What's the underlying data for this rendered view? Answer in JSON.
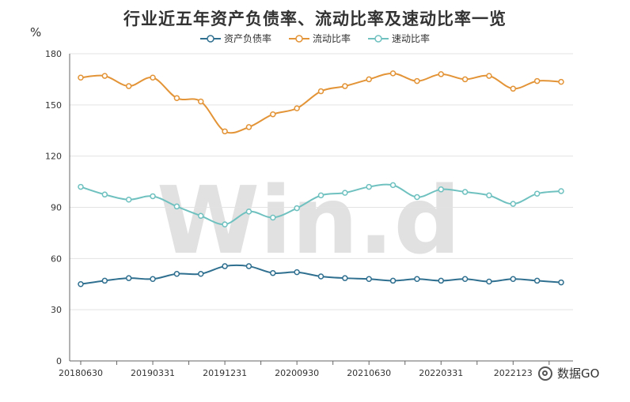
{
  "title": "行业近五年资产负债率、流动比率及速动比率一览",
  "y_unit": "%",
  "brand": "数据GO",
  "watermark_text": "Win.d",
  "chart_data": {
    "type": "line",
    "legend_position": "top-center",
    "grid": true,
    "ylim": [
      0,
      180
    ],
    "yticks": [
      0,
      30,
      60,
      90,
      120,
      150,
      180
    ],
    "x_tick_labels": [
      "20180630",
      "20190331",
      "20191231",
      "20200930",
      "20210630",
      "20220331",
      "2022123"
    ],
    "x_tick_indices": [
      0,
      3,
      6,
      9,
      12,
      15,
      18
    ],
    "x_count": 21,
    "series": [
      {
        "name": "资产负债率",
        "color": "#2f6f8f",
        "values": [
          45,
          47,
          48.5,
          48,
          51,
          51,
          55.5,
          55.5,
          51.5,
          52,
          49.5,
          48.5,
          48,
          47,
          48,
          47,
          48,
          46.5,
          48,
          47,
          46
        ]
      },
      {
        "name": "流动比率",
        "color": "#e39437",
        "values": [
          166,
          167,
          161,
          166,
          154,
          152,
          134.5,
          137,
          144.5,
          148,
          158,
          161,
          165,
          168.5,
          164,
          168,
          165,
          167,
          159.5,
          164,
          163.5
        ]
      },
      {
        "name": "速动比率",
        "color": "#6fc1c0",
        "values": [
          102,
          97.5,
          94.5,
          96.5,
          90.5,
          85,
          80,
          87.5,
          84,
          89.5,
          97,
          98.5,
          102,
          103,
          96,
          100.5,
          99,
          97,
          92,
          98,
          99.5
        ]
      }
    ]
  }
}
